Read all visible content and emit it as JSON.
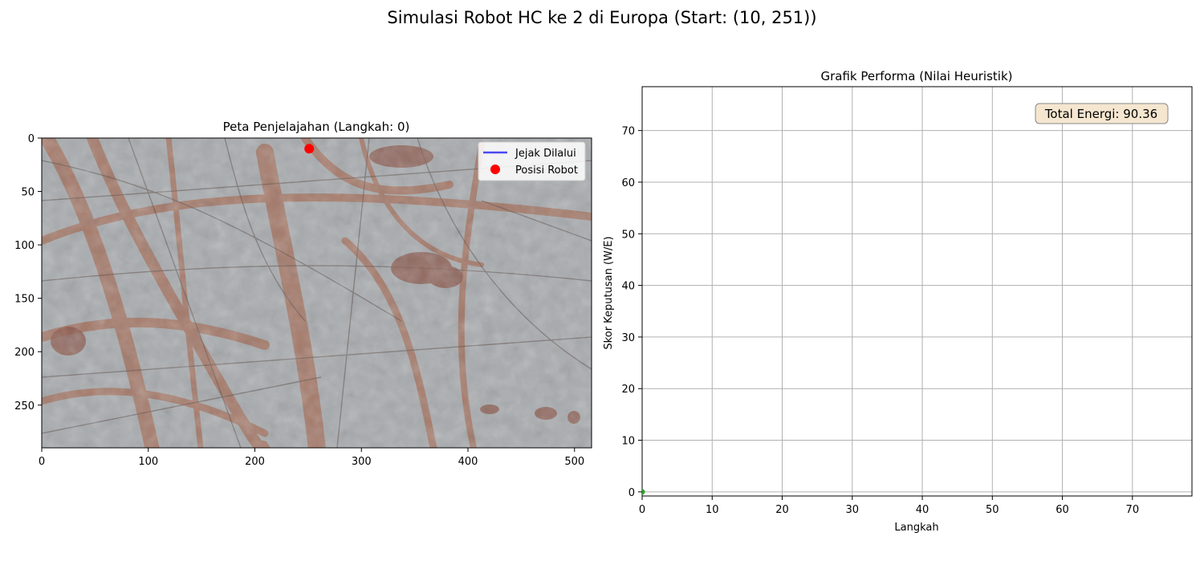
{
  "figure": {
    "suptitle": "Simulasi Robot HC ke 2 di Europa (Start: (10, 251))"
  },
  "chart_data": [
    {
      "type": "scatter",
      "title": "Peta Penjelajahan (Langkah: 0)",
      "background": "Europa surface image",
      "xlim": [
        0,
        516
      ],
      "ylim": [
        290,
        0
      ],
      "xticks": [
        0,
        100,
        200,
        300,
        400,
        500
      ],
      "yticks": [
        0,
        50,
        100,
        150,
        200,
        250
      ],
      "legend_position": "upper-right",
      "series": [
        {
          "name": "Jejak Dilalui",
          "kind": "line",
          "color": "#4a4af0",
          "points": [
            [
              251,
              10
            ]
          ]
        },
        {
          "name": "Posisi Robot",
          "kind": "marker",
          "color": "#ff0000",
          "points": [
            [
              251,
              10
            ]
          ]
        }
      ]
    },
    {
      "type": "line",
      "title": "Grafik Performa (Nilai Heuristik)",
      "xlabel": "Langkah",
      "ylabel": "Skor Keputusan (W/E)",
      "xlim": [
        0,
        78.5
      ],
      "ylim": [
        -0.8,
        78.5
      ],
      "xticks": [
        0,
        10,
        20,
        30,
        40,
        50,
        60,
        70
      ],
      "yticks": [
        0,
        10,
        20,
        30,
        40,
        50,
        60,
        70
      ],
      "grid": true,
      "series": [
        {
          "color": "#2ca02c",
          "x": [
            0
          ],
          "y": [
            0
          ]
        }
      ],
      "annotation": "Total Energi: 90.36"
    }
  ]
}
